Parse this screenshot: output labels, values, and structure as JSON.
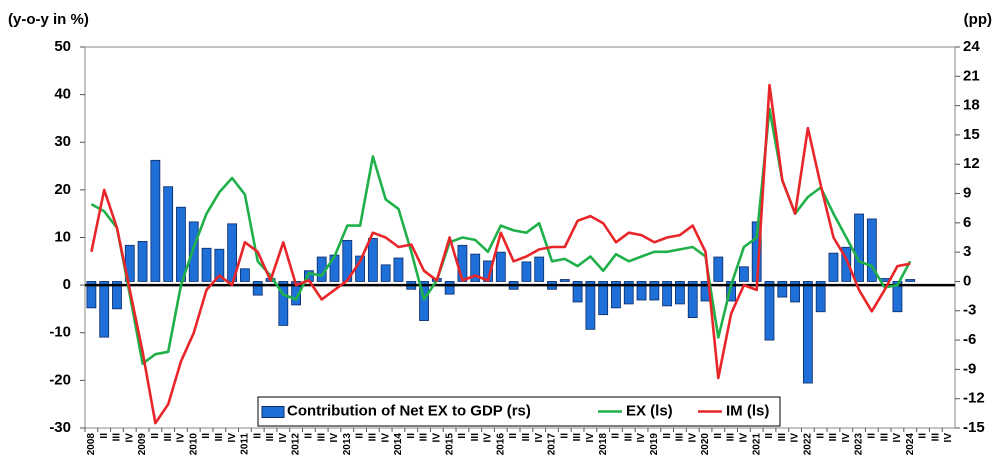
{
  "chart_data": {
    "type": "combo",
    "ylabel": "(y-o-y in %)",
    "y2label": "(pp)",
    "categories": [
      "2008",
      "II",
      "III",
      "IV",
      "2009",
      "II",
      "III",
      "IV",
      "2010",
      "II",
      "III",
      "IV",
      "2011",
      "II",
      "III",
      "IV",
      "2012",
      "II",
      "III",
      "IV",
      "2013",
      "II",
      "III",
      "IV",
      "2014",
      "II",
      "III",
      "IV",
      "2015",
      "II",
      "III",
      "IV",
      "2016",
      "II",
      "III",
      "IV",
      "2017",
      "II",
      "III",
      "IV",
      "2018",
      "II",
      "III",
      "IV",
      "2019",
      "II",
      "III",
      "IV",
      "2020",
      "II",
      "III",
      "IV",
      "2021",
      "II",
      "III",
      "IV",
      "2022",
      "II",
      "III",
      "IV",
      "2023",
      "II",
      "III",
      "IV",
      "2024",
      "II",
      "III",
      "IV"
    ],
    "ylim": [
      -30,
      50
    ],
    "yticks": [
      -30,
      -20,
      -10,
      0,
      10,
      20,
      30,
      40,
      50
    ],
    "y2lim": [
      -15,
      24
    ],
    "y2ticks": [
      -15,
      -12,
      -9,
      -6,
      -3,
      0,
      3,
      6,
      9,
      12,
      15,
      18,
      21,
      24
    ],
    "series": [
      {
        "name": "Contribution of Net EX to GDP (rs)",
        "type": "bar",
        "axis": "y2",
        "color": "#1f6fd8",
        "values": [
          -2.7,
          -5.7,
          -2.8,
          3.7,
          4.1,
          12.4,
          9.7,
          7.6,
          6.1,
          3.4,
          3.3,
          5.9,
          1.3,
          -1.4,
          0.3,
          -4.5,
          -2.4,
          1.1,
          2.5,
          2.7,
          4.2,
          2.6,
          4.4,
          1.7,
          2.4,
          -0.8,
          -4.0,
          0.3,
          -1.3,
          3.7,
          2.8,
          2.1,
          3.0,
          -0.8,
          2.0,
          2.5,
          -0.8,
          0.2,
          -2.1,
          -4.9,
          -3.4,
          -2.7,
          -2.3,
          -1.9,
          -1.9,
          -2.5,
          -2.3,
          -3.7,
          -2.0,
          2.5,
          -2.0,
          1.5,
          6.1,
          -6.0,
          -1.6,
          -2.1,
          -10.4,
          -3.1,
          2.9,
          3.5,
          6.9,
          6.4,
          0.3,
          -3.1,
          0.2,
          null,
          null,
          null
        ]
      },
      {
        "name": "EX (ls)",
        "type": "line",
        "color": "#1fb04a",
        "values": [
          17,
          15.5,
          12,
          -2,
          -16.5,
          -14.5,
          -14,
          0,
          8,
          15,
          19.5,
          22.5,
          19,
          5,
          2,
          -2,
          -3,
          2.5,
          2,
          6,
          12.5,
          12.5,
          27,
          18,
          16,
          7,
          -3,
          1,
          9,
          10,
          9.5,
          7,
          12.5,
          11.5,
          11,
          13,
          5,
          5.5,
          4,
          6,
          3,
          6.5,
          5,
          6,
          7,
          7,
          7.5,
          8,
          6,
          -11,
          0,
          8,
          10,
          37,
          22,
          15,
          18.5,
          20.5,
          15,
          10,
          5,
          4,
          -0.5,
          0,
          5,
          null,
          null,
          null
        ]
      },
      {
        "name": "IM (ls)",
        "type": "line",
        "color": "#e8262a",
        "values": [
          7,
          20,
          12,
          -1,
          -14,
          -29,
          -25,
          -16,
          -10,
          -1,
          2,
          0,
          9,
          7,
          1,
          9,
          0,
          1,
          -3,
          -1,
          1,
          5,
          11,
          10,
          8,
          8.5,
          3,
          1,
          10,
          1,
          2,
          1,
          11,
          5,
          6,
          7.5,
          8,
          8,
          13.5,
          14.5,
          13,
          9,
          11,
          10.5,
          9,
          10,
          10.5,
          12.5,
          7,
          -19.5,
          -6,
          0,
          -1,
          42,
          22,
          15,
          33,
          21,
          10,
          5.5,
          -1,
          -5.5,
          -1,
          4,
          4.5,
          null,
          null,
          null
        ]
      }
    ]
  }
}
